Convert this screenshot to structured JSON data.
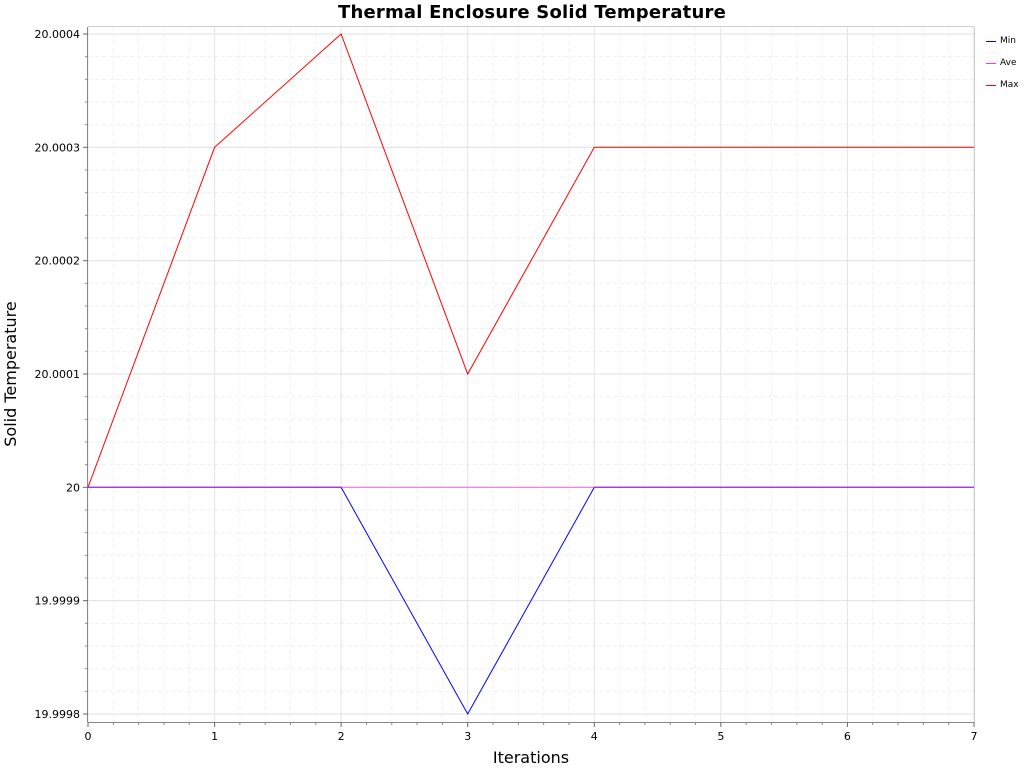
{
  "chart_data": {
    "type": "line",
    "title": "Thermal Enclosure Solid Temperature",
    "xlabel": "Iterations",
    "ylabel": "Solid Temperature",
    "x": [
      0,
      1,
      2,
      3,
      4,
      5,
      6,
      7
    ],
    "x_ticks": [
      "0",
      "1",
      "2",
      "3",
      "4",
      "5",
      "6",
      "7"
    ],
    "xlim": [
      0,
      7
    ],
    "ylim": [
      19.9998,
      20.0004
    ],
    "y_ticks": [
      {
        "value": 19.9998,
        "label": "19.9998"
      },
      {
        "value": 19.9999,
        "label": "19.9999"
      },
      {
        "value": 20.0,
        "label": "20"
      },
      {
        "value": 20.0001,
        "label": "20.0001"
      },
      {
        "value": 20.0002,
        "label": "20.0002"
      },
      {
        "value": 20.0003,
        "label": "20.0003"
      },
      {
        "value": 20.0004,
        "label": "20.0004"
      }
    ],
    "grid": true,
    "legend_position": "top-right",
    "series": [
      {
        "name": "Min",
        "color": "#0000ff",
        "values": [
          20.0,
          20.0,
          20.0,
          19.9998,
          20.0,
          20.0,
          20.0,
          20.0
        ]
      },
      {
        "name": "Ave",
        "color": "#ff33ff",
        "values": [
          20.0,
          20.0,
          20.0,
          20.0,
          20.0,
          20.0,
          20.0,
          20.0
        ]
      },
      {
        "name": "Max",
        "color": "#ff0000",
        "values": [
          20.0,
          20.0003,
          20.0004,
          20.0001,
          20.0003,
          20.0003,
          20.0003,
          20.0003
        ]
      }
    ]
  }
}
